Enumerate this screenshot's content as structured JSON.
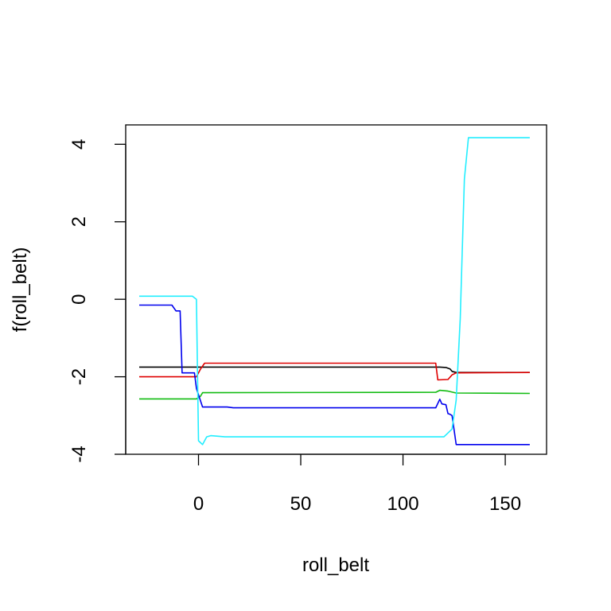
{
  "chart_data": {
    "type": "line",
    "title": "",
    "xlabel": "roll_belt",
    "ylabel": "f(roll_belt)",
    "xlim": [
      -35.6,
      170.2
    ],
    "ylim": [
      -4.0,
      4.5
    ],
    "x_ticks": [
      0,
      50,
      100,
      150
    ],
    "y_ticks": [
      -4,
      -2,
      0,
      2,
      4
    ],
    "grid": false,
    "legend": "none",
    "series": [
      {
        "color": "#000000",
        "points": [
          [
            -29,
            -1.75
          ],
          [
            115,
            -1.75
          ],
          [
            118,
            -1.75
          ],
          [
            121,
            -1.76
          ],
          [
            123,
            -1.8
          ],
          [
            124,
            -1.86
          ],
          [
            126,
            -1.89
          ],
          [
            162,
            -1.89
          ]
        ]
      },
      {
        "color": "#df0000",
        "points": [
          [
            -29,
            -2.0
          ],
          [
            -1,
            -2.0
          ],
          [
            1,
            -1.8
          ],
          [
            3,
            -1.65
          ],
          [
            116,
            -1.65
          ],
          [
            117,
            -2.08
          ],
          [
            122,
            -2.07
          ],
          [
            124,
            -1.95
          ],
          [
            126,
            -1.9
          ],
          [
            162,
            -1.89
          ]
        ]
      },
      {
        "color": "#11bb11",
        "points": [
          [
            -29,
            -2.57
          ],
          [
            -1,
            -2.57
          ],
          [
            1,
            -2.5
          ],
          [
            2,
            -2.41
          ],
          [
            116,
            -2.4
          ],
          [
            118,
            -2.35
          ],
          [
            122,
            -2.37
          ],
          [
            126,
            -2.42
          ],
          [
            162,
            -2.43
          ]
        ]
      },
      {
        "color": "#0000ee",
        "points": [
          [
            -29,
            -0.15
          ],
          [
            -13,
            -0.15
          ],
          [
            -11,
            -0.3
          ],
          [
            -9,
            -0.3
          ],
          [
            -8,
            -1.9
          ],
          [
            -2,
            -1.9
          ],
          [
            -1,
            -2.3
          ],
          [
            2,
            -2.78
          ],
          [
            14,
            -2.78
          ],
          [
            17,
            -2.8
          ],
          [
            116,
            -2.8
          ],
          [
            118,
            -2.58
          ],
          [
            119,
            -2.7
          ],
          [
            121,
            -2.72
          ],
          [
            122,
            -2.95
          ],
          [
            123,
            -2.97
          ],
          [
            124,
            -3.0
          ],
          [
            126,
            -3.75
          ],
          [
            162,
            -3.75
          ]
        ]
      },
      {
        "color": "#22eeff",
        "points": [
          [
            -29,
            0.08
          ],
          [
            -3,
            0.08
          ],
          [
            -1,
            0.0
          ],
          [
            0,
            -3.65
          ],
          [
            2,
            -3.75
          ],
          [
            4,
            -3.55
          ],
          [
            6,
            -3.52
          ],
          [
            13,
            -3.55
          ],
          [
            120,
            -3.55
          ],
          [
            124,
            -3.35
          ],
          [
            126,
            -2.6
          ],
          [
            128,
            -0.5
          ],
          [
            130,
            3.1
          ],
          [
            132,
            4.17
          ],
          [
            162,
            4.17
          ]
        ]
      }
    ]
  }
}
